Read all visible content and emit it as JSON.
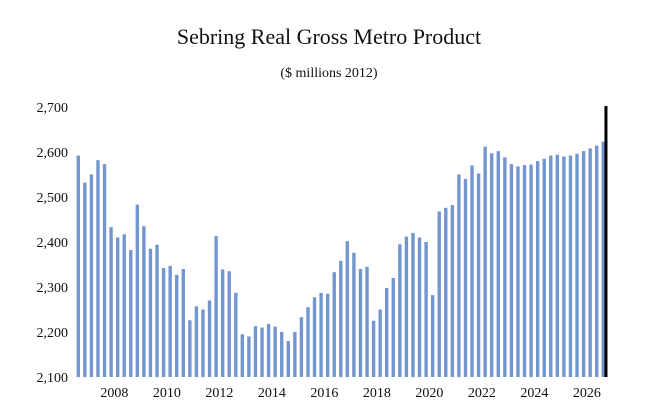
{
  "chart_data": {
    "type": "bar",
    "title": "Sebring Real Gross Metro Product",
    "subtitle": "($ millions 2012)",
    "xlabel": "",
    "ylabel": "",
    "ylim": [
      2100,
      2700
    ],
    "y_ticks": [
      2100,
      2200,
      2300,
      2400,
      2500,
      2600,
      2700
    ],
    "y_tick_labels": [
      "2,100",
      "2,200",
      "2,300",
      "2,400",
      "2,500",
      "2,600",
      "2,700"
    ],
    "x_tick_labels": [
      "2008",
      "2010",
      "2012",
      "2014",
      "2016",
      "2018",
      "2020",
      "2022",
      "2024",
      "2026"
    ],
    "bar_color": "#7396ce",
    "marker_color": "#000000",
    "marker_after_bar_index": 80,
    "start_quarter": "2006Q3",
    "values": [
      2592,
      2532,
      2550,
      2582,
      2573,
      2433,
      2410,
      2417,
      2382,
      2483,
      2435,
      2385,
      2394,
      2342,
      2347,
      2327,
      2340,
      2226,
      2257,
      2250,
      2270,
      2413,
      2339,
      2335,
      2287,
      2195,
      2190,
      2213,
      2210,
      2218,
      2212,
      2200,
      2180,
      2200,
      2233,
      2255,
      2277,
      2287,
      2285,
      2333,
      2358,
      2402,
      2376,
      2340,
      2345,
      2225,
      2250,
      2298,
      2320,
      2395,
      2412,
      2420,
      2410,
      2400,
      2282,
      2468,
      2476,
      2482,
      2550,
      2540,
      2570,
      2552,
      2612,
      2597,
      2602,
      2588,
      2573,
      2568,
      2571,
      2572,
      2580,
      2585,
      2592,
      2594,
      2590,
      2592,
      2596,
      2602,
      2608,
      2614,
      2623
    ]
  }
}
